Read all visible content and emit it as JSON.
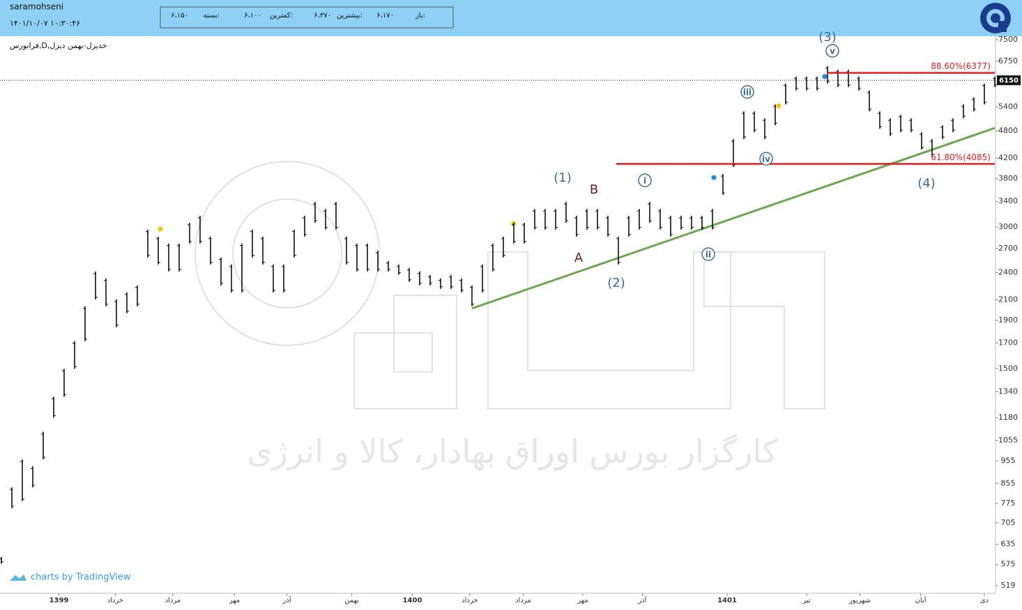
{
  "header": {
    "user": "saramohseni",
    "datetime": "۱۴۰۱/۱۰/۰۷ ۱۰:۳۰:۴۶",
    "quote": [
      {
        "label": "باز:",
        "value": "۶،۱۷۰"
      },
      {
        "label": "بیشترین:",
        "value": "۶،۳۷۰"
      },
      {
        "label": "کمترین:",
        "value": "۶،۱۰۰"
      },
      {
        "label": "بسته:",
        "value": "۶،۱۵۰"
      }
    ]
  },
  "chart_data": {
    "type": "ohlc",
    "title": "فرابورس,D,خدیزل-بهمن دیزل",
    "watermark": "کارگزار بورس اوراق بهادار، کالا و انرژی",
    "credit": "charts by TradingView",
    "log_scale": true,
    "color": "#000000",
    "xlim": [
      0,
      95
    ],
    "ylim": [
      503,
      7630
    ],
    "yticks": [
      519,
      575,
      635,
      705,
      775,
      855,
      955,
      1055,
      1180,
      1340,
      1500,
      1700,
      1900,
      2100,
      2400,
      2700,
      3000,
      3400,
      3800,
      4200,
      4800,
      5400,
      6750,
      7500
    ],
    "xticks": [
      {
        "value": 5.5,
        "label": "1399"
      },
      {
        "value": 10.9,
        "label": "خرداد"
      },
      {
        "value": 16.4,
        "label": "مرداد"
      },
      {
        "value": 22.3,
        "label": "مهر"
      },
      {
        "value": 27.3,
        "label": "آذر"
      },
      {
        "value": 33.5,
        "label": "بهمن"
      },
      {
        "value": 39.3,
        "label": "1400"
      },
      {
        "value": 44.8,
        "label": "خرداد"
      },
      {
        "value": 49.9,
        "label": "مرداد"
      },
      {
        "value": 55.6,
        "label": "مهر"
      },
      {
        "value": 61.3,
        "label": "آذر"
      },
      {
        "value": 69.4,
        "label": "1401"
      },
      {
        "value": 77,
        "label": "تیر"
      },
      {
        "value": 82.1,
        "label": "شهریور"
      },
      {
        "value": 87.9,
        "label": "آبان"
      },
      {
        "value": 94,
        "label": "دی"
      }
    ],
    "high": [
      597,
      839,
      962,
      930,
      1101,
      1307,
      1498,
      1716,
      2035,
      2413,
      2333,
      2105,
      2178,
      2254,
      2962,
      2862,
      2766,
      2766,
      3062,
      3168,
      2862,
      2584,
      2497,
      2766,
      2962,
      2862,
      2497,
      2497,
      2962,
      3168,
      3391,
      3276,
      3391,
      2862,
      2766,
      2766,
      2673,
      2540,
      2497,
      2456,
      2413,
      2373,
      2333,
      2373,
      2333,
      2254,
      2497,
      2766,
      2862,
      3062,
      3062,
      3276,
      3276,
      3276,
      3391,
      3168,
      3276,
      3276,
      3168,
      2862,
      3168,
      3276,
      3391,
      3276,
      3168,
      3168,
      3168,
      3168,
      3276,
      3887,
      4610,
      5282,
      5282,
      5106,
      5466,
      6054,
      6264,
      6264,
      6264,
      6592,
      6476,
      6476,
      6264,
      5851,
      5282,
      5106,
      5192,
      5106,
      4770,
      4610,
      4935,
      5106,
      5466,
      5656,
      6054,
      6264
    ],
    "low": [
      577,
      757,
      784,
      839,
      962,
      1180,
      1307,
      1498,
      1716,
      2105,
      2035,
      1837,
      1967,
      2035,
      2584,
      2497,
      2413,
      2413,
      2766,
      2766,
      2497,
      2254,
      2178,
      2178,
      2584,
      2497,
      2178,
      2178,
      2584,
      2862,
      3062,
      2962,
      2962,
      2497,
      2413,
      2413,
      2413,
      2413,
      2373,
      2293,
      2254,
      2254,
      2216,
      2216,
      2178,
      2035,
      2178,
      2413,
      2584,
      2766,
      2766,
      2962,
      2962,
      2962,
      3062,
      2862,
      2962,
      2962,
      2862,
      2497,
      2862,
      2962,
      3062,
      2962,
      2862,
      2962,
      2962,
      2962,
      2962,
      3509,
      4022,
      4610,
      4770,
      4610,
      4935,
      5466,
      5851,
      5851,
      5851,
      6054,
      5950,
      5950,
      5851,
      5282,
      4852,
      4687,
      4770,
      4770,
      4380,
      4233,
      4610,
      4770,
      5106,
      5282,
      5466,
      5950
    ],
    "last_price": 6150,
    "fib_levels": [
      {
        "label": "88.60%(6377)",
        "value": 6377,
        "color": "#e02020"
      },
      {
        "label": "61.80%(4085)",
        "value": 4085,
        "color": "#e02020"
      }
    ],
    "trendline": {
      "x": [
        45,
        95
      ],
      "y": [
        2014,
        4868
      ],
      "color": "#6aa84f"
    },
    "wave_labels": [
      "(1)",
      "B",
      "A",
      "(2)",
      "i",
      "ii",
      "iii",
      "iv",
      "(3)",
      "v",
      "(4)"
    ]
  }
}
